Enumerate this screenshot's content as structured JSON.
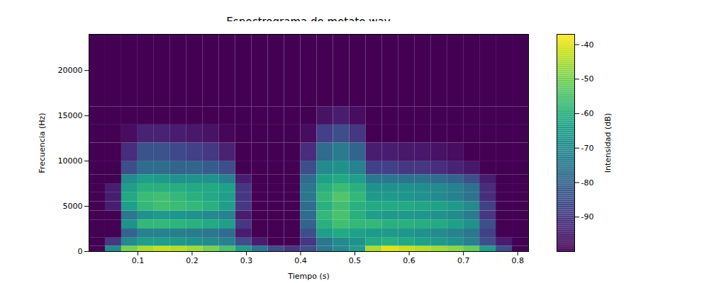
{
  "chart_data": {
    "type": "heatmap",
    "title": "Espectrograma de metate.wav",
    "x_label": "Tiempo (s)",
    "y_label": "Frecuencia (Hz)",
    "xlim": [
      0.01,
      0.82
    ],
    "xticks": [
      0.1,
      0.2,
      0.3,
      0.4,
      0.5,
      0.6,
      0.7,
      0.8
    ],
    "ylim": [
      0,
      24000
    ],
    "yticks": [
      0,
      5000,
      10000,
      15000,
      20000
    ],
    "color": "viridis",
    "x_edges": [
      0.01,
      0.04,
      0.07,
      0.1,
      0.13,
      0.16,
      0.19,
      0.22,
      0.25,
      0.28,
      0.31,
      0.34,
      0.37,
      0.4,
      0.43,
      0.46,
      0.49,
      0.52,
      0.55,
      0.58,
      0.61,
      0.64,
      0.67,
      0.7,
      0.73,
      0.76,
      0.79,
      0.82
    ],
    "y_edges": [
      0,
      600,
      1500,
      2500,
      3500,
      4500,
      5500,
      6500,
      7500,
      8500,
      10000,
      12000,
      14000,
      16000,
      24000
    ],
    "cells": [
      [
        -100,
        -70,
        -50,
        -45,
        -43,
        -44,
        -46,
        -50,
        -55,
        -65,
        -75,
        -85,
        -90,
        -85,
        -75,
        -70,
        -65,
        -45,
        -40,
        -42,
        -44,
        -46,
        -48,
        -52,
        -65,
        -85,
        -100
      ],
      [
        -100,
        -90,
        -70,
        -65,
        -65,
        -66,
        -68,
        -70,
        -72,
        -85,
        -95,
        -100,
        -100,
        -90,
        -75,
        -70,
        -68,
        -62,
        -60,
        -62,
        -64,
        -66,
        -68,
        -72,
        -85,
        -95,
        -100
      ],
      [
        -100,
        -100,
        -80,
        -72,
        -72,
        -73,
        -74,
        -75,
        -78,
        -95,
        -100,
        -100,
        -100,
        -85,
        -65,
        -62,
        -64,
        -66,
        -66,
        -67,
        -68,
        -70,
        -72,
        -75,
        -88,
        -100,
        -100
      ],
      [
        -100,
        -100,
        -68,
        -58,
        -58,
        -59,
        -60,
        -62,
        -65,
        -90,
        -100,
        -100,
        -100,
        -80,
        -60,
        -56,
        -58,
        -58,
        -60,
        -60,
        -61,
        -62,
        -64,
        -68,
        -85,
        -100,
        -100
      ],
      [
        -100,
        -100,
        -75,
        -68,
        -66,
        -67,
        -68,
        -70,
        -72,
        -95,
        -100,
        -100,
        -100,
        -78,
        -58,
        -55,
        -60,
        -65,
        -66,
        -66,
        -67,
        -68,
        -70,
        -74,
        -90,
        -100,
        -100
      ],
      [
        -100,
        -95,
        -65,
        -58,
        -56,
        -57,
        -58,
        -60,
        -65,
        -90,
        -100,
        -100,
        -100,
        -78,
        -60,
        -56,
        -60,
        -62,
        -62,
        -62,
        -63,
        -64,
        -66,
        -70,
        -88,
        -100,
        -100
      ],
      [
        -100,
        -95,
        -62,
        -57,
        -56,
        -58,
        -60,
        -62,
        -65,
        -90,
        -100,
        -100,
        -100,
        -75,
        -58,
        -54,
        -58,
        -66,
        -66,
        -67,
        -68,
        -70,
        -72,
        -76,
        -92,
        -100,
        -100
      ],
      [
        -100,
        -95,
        -65,
        -60,
        -60,
        -61,
        -62,
        -62,
        -64,
        -90,
        -100,
        -100,
        -100,
        -75,
        -60,
        -57,
        -60,
        -68,
        -68,
        -68,
        -69,
        -70,
        -72,
        -76,
        -92,
        -100,
        -100
      ],
      [
        -100,
        -100,
        -70,
        -65,
        -66,
        -68,
        -68,
        -68,
        -72,
        -95,
        -100,
        -100,
        -100,
        -78,
        -64,
        -62,
        -65,
        -75,
        -75,
        -76,
        -76,
        -78,
        -80,
        -85,
        -95,
        -100,
        -100
      ],
      [
        -100,
        -100,
        -85,
        -78,
        -78,
        -80,
        -80,
        -82,
        -85,
        -100,
        -100,
        -100,
        -100,
        -85,
        -70,
        -68,
        -72,
        -88,
        -88,
        -90,
        -90,
        -92,
        -94,
        -96,
        -100,
        -100,
        -100
      ],
      [
        -100,
        -100,
        -92,
        -84,
        -84,
        -86,
        -88,
        -90,
        -94,
        -100,
        -100,
        -100,
        -100,
        -92,
        -78,
        -74,
        -80,
        -95,
        -95,
        -96,
        -96,
        -97,
        -98,
        -100,
        -100,
        -100,
        -100
      ],
      [
        -100,
        -100,
        -98,
        -94,
        -94,
        -95,
        -96,
        -97,
        -99,
        -100,
        -100,
        -100,
        -100,
        -98,
        -88,
        -85,
        -90,
        -100,
        -100,
        -100,
        -100,
        -100,
        -100,
        -100,
        -100,
        -100,
        -100
      ],
      [
        -100,
        -100,
        -100,
        -100,
        -100,
        -100,
        -100,
        -100,
        -100,
        -100,
        -100,
        -100,
        -100,
        -100,
        -97,
        -95,
        -98,
        -100,
        -100,
        -100,
        -100,
        -100,
        -100,
        -100,
        -100,
        -100,
        -100
      ],
      [
        -100,
        -100,
        -100,
        -100,
        -100,
        -100,
        -100,
        -100,
        -100,
        -100,
        -100,
        -100,
        -100,
        -100,
        -100,
        -100,
        -100,
        -100,
        -100,
        -100,
        -100,
        -100,
        -100,
        -100,
        -100,
        -100,
        -100
      ]
    ],
    "colorbar": {
      "label": "Intensidad (dB)",
      "range": [
        -100,
        -37
      ],
      "ticks": [
        -90,
        -80,
        -70,
        -60,
        -50,
        -40
      ]
    }
  }
}
